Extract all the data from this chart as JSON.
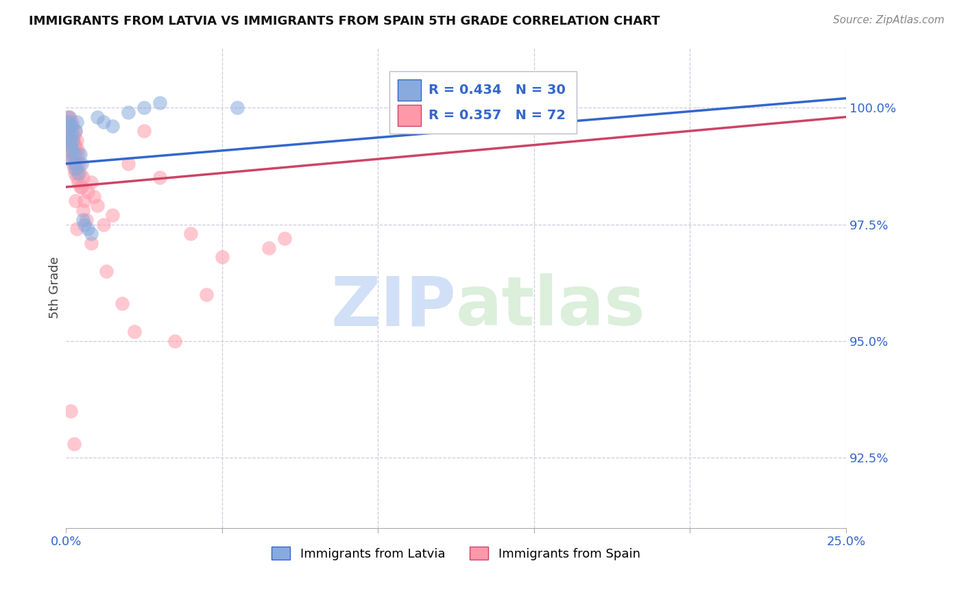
{
  "title": "IMMIGRANTS FROM LATVIA VS IMMIGRANTS FROM SPAIN 5TH GRADE CORRELATION CHART",
  "source": "Source: ZipAtlas.com",
  "ylabel": "5th Grade",
  "yaxis_labels": [
    "92.5%",
    "95.0%",
    "97.5%",
    "100.0%"
  ],
  "yaxis_values": [
    92.5,
    95.0,
    97.5,
    100.0
  ],
  "xmin": 0.0,
  "xmax": 25.0,
  "ymin": 91.0,
  "ymax": 101.3,
  "legend_latvia_r": "0.434",
  "legend_latvia_n": "30",
  "legend_spain_r": "0.357",
  "legend_spain_n": "72",
  "color_latvia": "#88AADD",
  "color_spain": "#FF99AA",
  "color_trendline_latvia": "#3366CC",
  "color_trendline_spain": "#CC4466",
  "watermark_zip": "ZIP",
  "watermark_atlas": "atlas",
  "latvia_x": [
    0.05,
    0.08,
    0.1,
    0.1,
    0.12,
    0.15,
    0.15,
    0.18,
    0.2,
    0.2,
    0.22,
    0.25,
    0.28,
    0.3,
    0.3,
    0.35,
    0.4,
    0.45,
    0.5,
    0.55,
    0.6,
    0.7,
    0.8,
    1.0,
    1.2,
    1.5,
    2.0,
    2.5,
    3.0,
    5.5
  ],
  "latvia_y": [
    99.7,
    99.5,
    99.8,
    99.3,
    99.6,
    99.2,
    98.9,
    99.4,
    99.6,
    99.1,
    99.3,
    99.0,
    98.8,
    99.5,
    98.7,
    99.7,
    98.6,
    99.0,
    98.8,
    97.6,
    97.5,
    97.4,
    97.3,
    99.8,
    99.7,
    99.6,
    99.9,
    100.0,
    100.1,
    100.0
  ],
  "spain_x": [
    0.03,
    0.05,
    0.05,
    0.07,
    0.08,
    0.08,
    0.1,
    0.1,
    0.1,
    0.12,
    0.12,
    0.13,
    0.14,
    0.15,
    0.15,
    0.15,
    0.17,
    0.18,
    0.18,
    0.2,
    0.2,
    0.2,
    0.22,
    0.22,
    0.24,
    0.25,
    0.25,
    0.26,
    0.27,
    0.28,
    0.28,
    0.3,
    0.3,
    0.32,
    0.33,
    0.35,
    0.35,
    0.37,
    0.38,
    0.4,
    0.4,
    0.42,
    0.45,
    0.5,
    0.55,
    0.55,
    0.6,
    0.65,
    0.7,
    0.8,
    0.9,
    1.0,
    1.2,
    1.5,
    2.0,
    2.5,
    3.0,
    4.0,
    5.0,
    6.5,
    7.0,
    0.8,
    1.3,
    1.8,
    2.2,
    3.5,
    4.5,
    0.15,
    0.25,
    0.3,
    0.35,
    0.45
  ],
  "spain_y": [
    99.8,
    99.6,
    99.4,
    99.7,
    99.5,
    99.2,
    99.8,
    99.6,
    99.3,
    99.7,
    99.5,
    99.1,
    99.3,
    99.6,
    99.4,
    99.0,
    99.2,
    98.9,
    99.4,
    99.7,
    99.5,
    99.2,
    98.8,
    99.0,
    99.3,
    99.1,
    98.7,
    99.4,
    99.2,
    98.6,
    98.9,
    99.5,
    99.2,
    98.8,
    99.0,
    98.5,
    99.3,
    98.7,
    99.1,
    98.4,
    99.0,
    98.8,
    98.6,
    98.3,
    98.5,
    97.8,
    98.0,
    97.6,
    98.2,
    98.4,
    98.1,
    97.9,
    97.5,
    97.7,
    98.8,
    99.5,
    98.5,
    97.3,
    96.8,
    97.0,
    97.2,
    97.1,
    96.5,
    95.8,
    95.2,
    95.0,
    96.0,
    93.5,
    92.8,
    98.0,
    97.4,
    98.3
  ],
  "trendline_latvia_x0": 0.0,
  "trendline_latvia_x1": 25.0,
  "trendline_latvia_y0": 98.8,
  "trendline_latvia_y1": 100.2,
  "trendline_spain_x0": 0.0,
  "trendline_spain_x1": 25.0,
  "trendline_spain_y0": 98.3,
  "trendline_spain_y1": 99.8
}
